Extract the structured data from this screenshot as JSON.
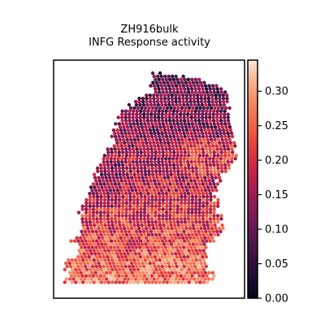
{
  "chart_data": {
    "type": "heatmap",
    "subtype": "spatial-spot-map",
    "title": "ZH916bulk",
    "subtitle": "INFG Response activity",
    "xlabel": "",
    "ylabel": "",
    "colorbar": {
      "cmap": "rocket",
      "vmin": 0.0,
      "vmax": 0.345,
      "ticks": [
        0.0,
        0.05,
        0.1,
        0.15,
        0.2,
        0.25,
        0.3
      ],
      "tick_labels": [
        "0.00",
        "0.05",
        "0.10",
        "0.15",
        "0.20",
        "0.25",
        "0.30"
      ],
      "placement": "right"
    },
    "grid": false,
    "value_gradient": {
      "top_region_mean": 0.09,
      "middle_region_mean": 0.17,
      "bottom_region_mean": 0.27
    }
  }
}
